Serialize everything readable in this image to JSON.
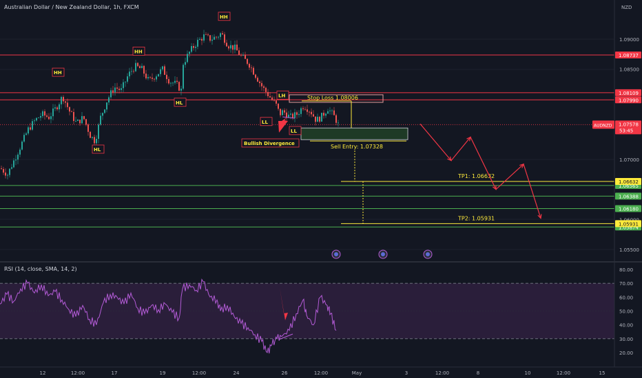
{
  "header": {
    "symbol_title": "Australian Dollar / New Zealand Dollar, 1h, FXCM",
    "currency": "NZD"
  },
  "colors": {
    "background": "#131722",
    "candle_up": "#26a69a",
    "candle_down": "#ef5350",
    "resistance_line": "#f23645",
    "support_line": "#4caf50",
    "tp_line": "#ffeb3b",
    "rsi_line": "#b35bd6",
    "rsi_band": "#2a1e3a",
    "annotation_text": "#ffeb3b",
    "label_border": "#f23645",
    "projection_arrow": "#f23645"
  },
  "chart_data": [
    {
      "type": "candlestick",
      "title": "Australian Dollar / New Zealand Dollar, 1h, FXCM",
      "ylabel": "NZD",
      "ylim": [
        1.0525,
        1.093
      ],
      "y_ticks": [
        "1.09000",
        "1.08500",
        "1.07000",
        "1.06000",
        "1.05500"
      ],
      "x_tick_labels": [
        "12",
        "12:00",
        "17",
        "19",
        "12:00",
        "24",
        "26",
        "12:00",
        "May",
        "3",
        "12:00",
        "8",
        "10",
        "12:00",
        "15"
      ],
      "price_close_path": [
        [
          0,
          1.0685
        ],
        [
          10,
          1.0675
        ],
        [
          20,
          1.07
        ],
        [
          30,
          1.0725
        ],
        [
          40,
          1.075
        ],
        [
          50,
          1.0765
        ],
        [
          60,
          1.0775
        ],
        [
          70,
          1.077
        ],
        [
          80,
          1.0785
        ],
        [
          90,
          1.0805
        ],
        [
          100,
          1.078
        ],
        [
          110,
          1.076
        ],
        [
          120,
          1.077
        ],
        [
          130,
          1.074
        ],
        [
          137,
          1.073
        ],
        [
          145,
          1.077
        ],
        [
          155,
          1.08
        ],
        [
          165,
          1.082
        ],
        [
          175,
          1.0815
        ],
        [
          185,
          1.084
        ],
        [
          195,
          1.0855
        ],
        [
          205,
          1.085
        ],
        [
          215,
          1.083
        ],
        [
          225,
          1.084
        ],
        [
          235,
          1.085
        ],
        [
          245,
          1.083
        ],
        [
          255,
          1.0825
        ],
        [
          262,
          1.0815
        ],
        [
          265,
          1.086
        ],
        [
          275,
          1.088
        ],
        [
          285,
          1.0895
        ],
        [
          295,
          1.0905
        ],
        [
          305,
          1.09
        ],
        [
          315,
          1.0905
        ],
        [
          320,
          1.091
        ],
        [
          330,
          1.089
        ],
        [
          340,
          1.0885
        ],
        [
          350,
          1.087
        ],
        [
          360,
          1.086
        ],
        [
          370,
          1.084
        ],
        [
          380,
          1.082
        ],
        [
          390,
          1.0805
        ],
        [
          400,
          1.079
        ],
        [
          405,
          1.0775
        ],
        [
          410,
          1.078
        ],
        [
          420,
          1.077
        ],
        [
          430,
          1.0775
        ],
        [
          440,
          1.079
        ],
        [
          450,
          1.078
        ],
        [
          458,
          1.0765
        ],
        [
          465,
          1.077
        ],
        [
          475,
          1.0785
        ],
        [
          485,
          1.077
        ],
        [
          490,
          1.0758
        ]
      ],
      "horizontal_levels": [
        {
          "price": 1.08737,
          "label": "1.08737",
          "kind": "resistance"
        },
        {
          "price": 1.08109,
          "label": "1.08109",
          "kind": "resistance"
        },
        {
          "price": 1.0799,
          "label": "1.07990",
          "kind": "resistance"
        },
        {
          "price": 1.06565,
          "label": "1.06565",
          "kind": "support"
        },
        {
          "price": 1.06388,
          "label": "1.06388",
          "kind": "support"
        },
        {
          "price": 1.0618,
          "label": "1.06180",
          "kind": "support"
        },
        {
          "price": 1.05874,
          "label": "1.05874",
          "kind": "support"
        }
      ],
      "current_price": {
        "label": "AUDNZD",
        "price": 1.07578,
        "value_label": "1.07578",
        "countdown": "53:45"
      },
      "trade_setup": {
        "stop_loss": {
          "text": "Stop Loss 1.08006",
          "price": 1.08006
        },
        "sell_entry": {
          "text": "Sell Entry: 1.07328",
          "price": 1.07328
        },
        "tp1": {
          "text": "TP1: 1.06632",
          "price": 1.06632,
          "axis_label": "1.06632"
        },
        "tp2": {
          "text": "TP2: 1.05931",
          "price": 1.05931,
          "axis_label": "1.05931"
        }
      },
      "swing_labels": [
        {
          "text": "HH",
          "x": 84,
          "price": 1.0845
        },
        {
          "text": "HL",
          "x": 142,
          "price": 1.0717
        },
        {
          "text": "HH",
          "x": 201,
          "price": 1.088
        },
        {
          "text": "HL",
          "x": 261,
          "price": 1.0795
        },
        {
          "text": "HH",
          "x": 325,
          "price": 1.0938
        },
        {
          "text": "LH",
          "x": 410,
          "price": 1.0807
        },
        {
          "text": "LL",
          "x": 386,
          "price": 1.0763
        },
        {
          "text": "LL",
          "x": 428,
          "price": 1.0748
        }
      ],
      "annotations": [
        {
          "text": "Bullish Divergence"
        }
      ],
      "projection_path": [
        [
          610,
          1.0759
        ],
        [
          655,
          1.0698
        ],
        [
          683,
          1.0737
        ],
        [
          720,
          1.065
        ],
        [
          760,
          1.0692
        ],
        [
          785,
          1.0602
        ]
      ]
    },
    {
      "type": "line",
      "title": "RSI (14, close, SMA, 14, 2)",
      "ylim": [
        13,
        85
      ],
      "y_ticks": [
        "80.00",
        "70.00",
        "60.00",
        "50.00",
        "40.00",
        "30.00",
        "20.00"
      ],
      "bands": [
        30,
        70
      ],
      "series": [
        {
          "name": "RSI",
          "points": [
            [
              0,
              55
            ],
            [
              10,
              62
            ],
            [
              20,
              57
            ],
            [
              30,
              66
            ],
            [
              40,
              70
            ],
            [
              50,
              63
            ],
            [
              60,
              69
            ],
            [
              70,
              61
            ],
            [
              80,
              64
            ],
            [
              90,
              58
            ],
            [
              100,
              51
            ],
            [
              110,
              46
            ],
            [
              120,
              54
            ],
            [
              130,
              44
            ],
            [
              140,
              40
            ],
            [
              150,
              56
            ],
            [
              160,
              62
            ],
            [
              170,
              60
            ],
            [
              180,
              55
            ],
            [
              190,
              63
            ],
            [
              200,
              52
            ],
            [
              210,
              48
            ],
            [
              220,
              54
            ],
            [
              230,
              51
            ],
            [
              240,
              55
            ],
            [
              250,
              49
            ],
            [
              260,
              45
            ],
            [
              265,
              66
            ],
            [
              275,
              69
            ],
            [
              285,
              65
            ],
            [
              295,
              71
            ],
            [
              305,
              60
            ],
            [
              315,
              58
            ],
            [
              320,
              50
            ],
            [
              330,
              54
            ],
            [
              340,
              46
            ],
            [
              350,
              41
            ],
            [
              360,
              38
            ],
            [
              370,
              33
            ],
            [
              380,
              28
            ],
            [
              388,
              20
            ],
            [
              395,
              26
            ],
            [
              402,
              30
            ],
            [
              410,
              32
            ],
            [
              420,
              36
            ],
            [
              430,
              48
            ],
            [
              440,
              58
            ],
            [
              445,
              47
            ],
            [
              455,
              40
            ],
            [
              465,
              60
            ],
            [
              475,
              54
            ],
            [
              480,
              48
            ],
            [
              488,
              36
            ]
          ]
        }
      ]
    }
  ]
}
